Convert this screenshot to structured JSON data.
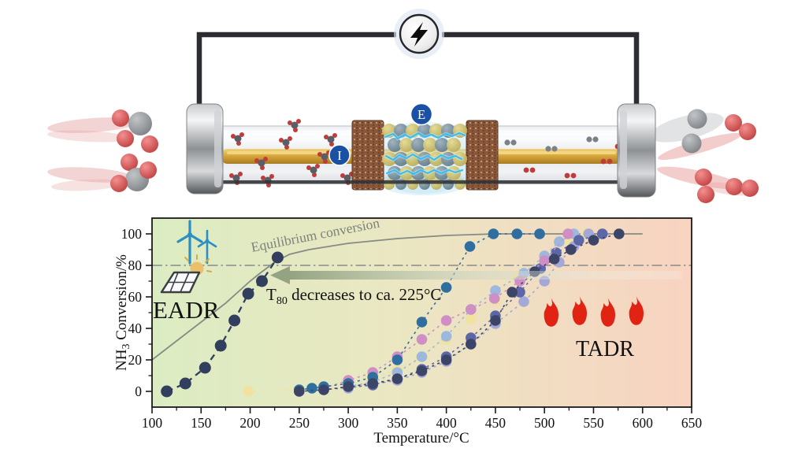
{
  "reactor_scene": {
    "power_source_icon": "lightning-bolt-icon",
    "electrode_outer_label": "E",
    "electrode_inner_label": "I",
    "inlet_icon": "nh3-molecule-icon",
    "outlet_icons": [
      "n2-molecule-icon",
      "h2-molecule-icon"
    ]
  },
  "chart_data": {
    "type": "line",
    "title": "",
    "xlabel": "Temperature/°C",
    "ylabel": "NH3 Conversion/%",
    "ylabel_parts": {
      "base": "NH",
      "sub": "3",
      "rest": " Conversion/%"
    },
    "xlim": [
      100,
      650
    ],
    "ylim": [
      0,
      100
    ],
    "xticks": [
      100,
      150,
      200,
      250,
      300,
      350,
      400,
      450,
      500,
      550,
      600,
      650
    ],
    "yticks": [
      0,
      20,
      40,
      60,
      80,
      100
    ],
    "grid": false,
    "legend": "none",
    "reference_line": {
      "y": 80,
      "style": "dash-dot",
      "color": "#8a8a8a"
    },
    "annotation_parts": {
      "t": "T",
      "sub": "80",
      "rest": " decreases to ca. 225°C"
    },
    "region_labels": [
      "EADR",
      "TADR"
    ],
    "equilibrium_label": "Equilibrium conversion",
    "colors": {
      "background_left": "#dcecc2",
      "background_right": "#f8d3c1",
      "flame": "#e02312",
      "turbine": "#2b8fc4"
    },
    "series": [
      {
        "id": "equilibrium-conversion",
        "color": "#868b84",
        "marker": false,
        "line": "solid",
        "width": 1.8,
        "points": [
          [
            100,
            20
          ],
          [
            125,
            32
          ],
          [
            150,
            44
          ],
          [
            175,
            56
          ],
          [
            200,
            70
          ],
          [
            210,
            75
          ],
          [
            225,
            82
          ],
          [
            240,
            87
          ],
          [
            260,
            90
          ],
          [
            300,
            94
          ],
          [
            350,
            97
          ],
          [
            400,
            99
          ],
          [
            450,
            100
          ],
          [
            500,
            100
          ],
          [
            550,
            100
          ],
          [
            600,
            100
          ]
        ]
      },
      {
        "id": "tadr-yellow",
        "color": "#f1e2a0",
        "marker": true,
        "line": "dashed",
        "width": 1.6,
        "r": 6.8,
        "points": [
          [
            198,
            0
          ],
          [
            250,
            1
          ],
          [
            300,
            4
          ],
          [
            325,
            8
          ],
          [
            350,
            14
          ],
          [
            375,
            22
          ],
          [
            400,
            33
          ],
          [
            425,
            46
          ],
          [
            450,
            58
          ],
          [
            472,
            73
          ],
          [
            500,
            86
          ],
          [
            525,
            96
          ],
          [
            542,
            100
          ]
        ]
      },
      {
        "id": "tadr-light-blue",
        "color": "#9cb8dc",
        "marker": true,
        "line": "dashed",
        "width": 1.6,
        "r": 6.8,
        "points": [
          [
            300,
            3
          ],
          [
            325,
            6
          ],
          [
            350,
            12
          ],
          [
            375,
            22
          ],
          [
            400,
            35
          ],
          [
            425,
            52
          ],
          [
            450,
            64
          ],
          [
            479,
            75
          ],
          [
            500,
            86
          ],
          [
            515,
            95
          ],
          [
            530,
            100
          ]
        ]
      },
      {
        "id": "tadr-periwinkle",
        "color": "#a4a8d6",
        "marker": true,
        "line": "dashed",
        "width": 1.6,
        "r": 6.8,
        "points": [
          [
            300,
            2
          ],
          [
            350,
            7
          ],
          [
            375,
            12
          ],
          [
            400,
            19
          ],
          [
            425,
            30
          ],
          [
            450,
            43
          ],
          [
            479,
            57
          ],
          [
            500,
            70
          ],
          [
            515,
            82
          ],
          [
            530,
            92
          ],
          [
            545,
            100
          ]
        ]
      },
      {
        "id": "tadr-slate-blue",
        "color": "#5d67a8",
        "marker": true,
        "line": "dashed",
        "width": 1.6,
        "r": 6.8,
        "points": [
          [
            275,
            1
          ],
          [
            325,
            4
          ],
          [
            350,
            8
          ],
          [
            375,
            14
          ],
          [
            400,
            22
          ],
          [
            425,
            34
          ],
          [
            450,
            48
          ],
          [
            475,
            63
          ],
          [
            496,
            78
          ],
          [
            512,
            88
          ],
          [
            535,
            96
          ],
          [
            559,
            100
          ]
        ]
      },
      {
        "id": "tadr-pink",
        "color": "#cf8ec6",
        "marker": true,
        "line": "dashed",
        "width": 1.6,
        "r": 6.8,
        "points": [
          [
            275,
            2
          ],
          [
            300,
            7
          ],
          [
            325,
            12
          ],
          [
            350,
            22
          ],
          [
            375,
            33
          ],
          [
            400,
            45
          ],
          [
            425,
            52
          ],
          [
            449,
            59
          ],
          [
            475,
            70
          ],
          [
            500,
            83
          ],
          [
            524,
            100
          ]
        ]
      },
      {
        "id": "tadr-steel-blue",
        "color": "#2f6e9e",
        "marker": true,
        "line": "dashed",
        "width": 1.6,
        "r": 6.8,
        "points": [
          [
            250,
            1
          ],
          [
            263,
            2
          ],
          [
            275,
            3
          ],
          [
            300,
            5
          ],
          [
            325,
            9
          ],
          [
            350,
            20
          ],
          [
            375,
            44
          ],
          [
            400,
            66
          ],
          [
            424,
            92
          ],
          [
            448,
            100
          ],
          [
            472,
            100
          ],
          [
            495,
            100
          ]
        ]
      },
      {
        "id": "tadr-navy",
        "color": "#3c4568",
        "marker": true,
        "line": "dashed",
        "width": 1.6,
        "r": 6.8,
        "points": [
          [
            250,
            0
          ],
          [
            275,
            1
          ],
          [
            300,
            3
          ],
          [
            325,
            5
          ],
          [
            350,
            8
          ],
          [
            375,
            13
          ],
          [
            400,
            20
          ],
          [
            425,
            30
          ],
          [
            450,
            45
          ],
          [
            467,
            63
          ],
          [
            490,
            76
          ],
          [
            510,
            84
          ],
          [
            527,
            90
          ],
          [
            550,
            96
          ],
          [
            576,
            100
          ]
        ]
      },
      {
        "id": "eadr-navy",
        "color": "#313e5e",
        "marker": true,
        "line": "long-dash",
        "width": 2.3,
        "r": 7.5,
        "points": [
          [
            115,
            0
          ],
          [
            134,
            5
          ],
          [
            154,
            15
          ],
          [
            170,
            29
          ],
          [
            184,
            45
          ],
          [
            198,
            62
          ],
          [
            212,
            70
          ],
          [
            228,
            85
          ]
        ]
      }
    ]
  }
}
